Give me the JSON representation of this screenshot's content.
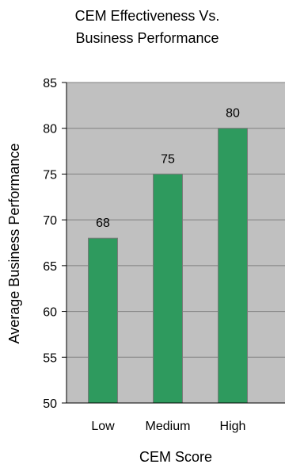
{
  "chart_data": {
    "type": "bar",
    "title_lines": [
      "CEM Effectiveness Vs.",
      "Business Performance"
    ],
    "xlabel": "CEM Score",
    "ylabel": "Average Business Performance",
    "categories": [
      "Low",
      "Medium",
      "High"
    ],
    "values": [
      68,
      75,
      80
    ],
    "data_labels": [
      "68",
      "75",
      "80"
    ],
    "ylim": [
      50,
      85
    ],
    "yticks": [
      50,
      55,
      60,
      65,
      70,
      75,
      80,
      85
    ],
    "grid": true,
    "legend": "none"
  },
  "colors": {
    "plot_background": "#c0c0c0",
    "bar_fill": "#2e9a5e",
    "bar_stroke": "#7a7a7a",
    "gridline": "#808080",
    "axis": "#000000"
  }
}
